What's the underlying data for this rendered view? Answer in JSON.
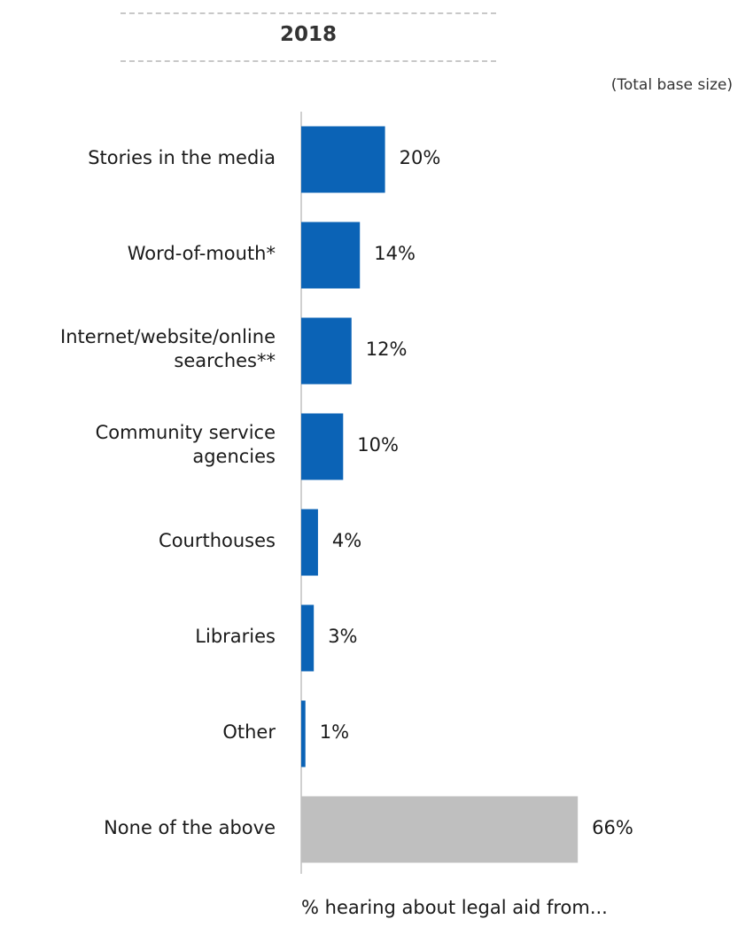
{
  "header": {
    "year": "2018",
    "base_note": "(Total base size)"
  },
  "colors": {
    "bar_primary": "#0B63B6",
    "bar_none": "#BFBFBF",
    "axis": "#d0d0d0"
  },
  "chart_data": {
    "type": "bar",
    "orientation": "horizontal",
    "title": "2018",
    "subtitle": "(Total base size)",
    "xlabel": "% hearing about legal aid from...",
    "ylabel": "",
    "xlim": [
      0,
      100
    ],
    "grid": false,
    "categories": [
      "Stories in the media",
      "Word-of-mouth*",
      "Internet/website/online searches**",
      "Community service agencies",
      "Courthouses",
      "Libraries",
      "Other",
      "None of the above"
    ],
    "category_lines": [
      [
        "Stories in the media"
      ],
      [
        "Word-of-mouth*"
      ],
      [
        "Internet/website/online",
        "searches**"
      ],
      [
        "Community service",
        "agencies"
      ],
      [
        "Courthouses"
      ],
      [
        "Libraries"
      ],
      [
        "Other"
      ],
      [
        "None of the above"
      ]
    ],
    "values": [
      20,
      14,
      12,
      10,
      4,
      3,
      1,
      66
    ],
    "value_labels": [
      "20%",
      "14%",
      "12%",
      "10%",
      "4%",
      "3%",
      "1%",
      "66%"
    ],
    "bar_color_keys": [
      "bar_primary",
      "bar_primary",
      "bar_primary",
      "bar_primary",
      "bar_primary",
      "bar_primary",
      "bar_primary",
      "bar_none"
    ]
  }
}
